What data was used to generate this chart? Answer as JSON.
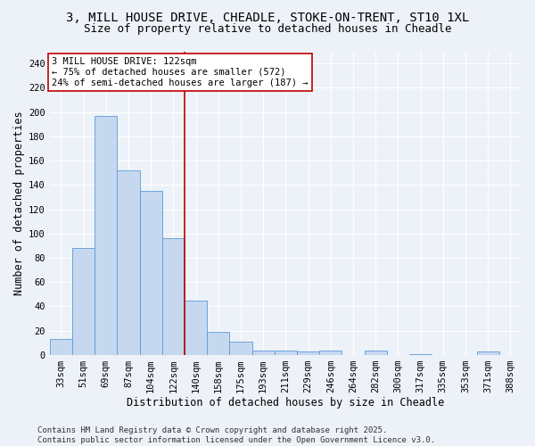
{
  "title_line1": "3, MILL HOUSE DRIVE, CHEADLE, STOKE-ON-TRENT, ST10 1XL",
  "title_line2": "Size of property relative to detached houses in Cheadle",
  "xlabel": "Distribution of detached houses by size in Cheadle",
  "ylabel": "Number of detached properties",
  "categories": [
    "33sqm",
    "51sqm",
    "69sqm",
    "87sqm",
    "104sqm",
    "122sqm",
    "140sqm",
    "158sqm",
    "175sqm",
    "193sqm",
    "211sqm",
    "229sqm",
    "246sqm",
    "264sqm",
    "282sqm",
    "300sqm",
    "317sqm",
    "335sqm",
    "353sqm",
    "371sqm",
    "388sqm"
  ],
  "values": [
    13,
    88,
    197,
    152,
    135,
    96,
    45,
    19,
    11,
    4,
    4,
    3,
    4,
    0,
    4,
    0,
    1,
    0,
    0,
    3,
    0
  ],
  "bar_color": "#c5d8f0",
  "bar_edge_color": "#5b9bd5",
  "vline_x": 5.5,
  "vline_color": "#c00000",
  "annotation_text": "3 MILL HOUSE DRIVE: 122sqm\n← 75% of detached houses are smaller (572)\n24% of semi-detached houses are larger (187) →",
  "annotation_box_color": "#ffffff",
  "annotation_box_edge": "#c00000",
  "ylim": [
    0,
    250
  ],
  "yticks": [
    0,
    20,
    40,
    60,
    80,
    100,
    120,
    140,
    160,
    180,
    200,
    220,
    240
  ],
  "footer_line1": "Contains HM Land Registry data © Crown copyright and database right 2025.",
  "footer_line2": "Contains public sector information licensed under the Open Government Licence v3.0.",
  "bg_color": "#edf2f9",
  "plot_bg_color": "#edf2f9",
  "grid_color": "#ffffff",
  "title_fontsize": 10,
  "subtitle_fontsize": 9,
  "axis_label_fontsize": 8.5,
  "tick_fontsize": 7.5,
  "annotation_fontsize": 7.5,
  "footer_fontsize": 6.5
}
